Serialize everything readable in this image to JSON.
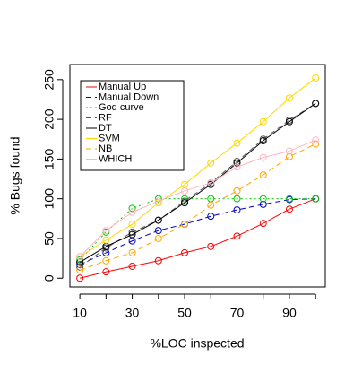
{
  "chart_data": {
    "type": "line",
    "xlabel": "%LOC inspected",
    "ylabel": "% Bugs found",
    "x": [
      10,
      20,
      30,
      40,
      50,
      60,
      70,
      80,
      90,
      100
    ],
    "xlim": [
      6.2,
      103.7
    ],
    "xticks": [
      10,
      30,
      50,
      70,
      90
    ],
    "ylim": [
      -11,
      269
    ],
    "yticks": [
      0,
      50,
      100,
      150,
      200,
      250
    ],
    "legend": "top-left",
    "series": [
      {
        "name": "Manual Up",
        "color": "#ff0000",
        "linestyle": "solid",
        "values": [
          0,
          8,
          15,
          22,
          32,
          40,
          53,
          69,
          87,
          100
        ]
      },
      {
        "name": "Manual Down",
        "color": "#0000cd",
        "linestyle": "dashed",
        "values": [
          17,
          32,
          47,
          60,
          68,
          78,
          86,
          93,
          99,
          100
        ]
      },
      {
        "name": "God curve",
        "color": "#00cc00",
        "linestyle": "dotted",
        "values": [
          23,
          58,
          88,
          100,
          100,
          100,
          100,
          100,
          100,
          100
        ]
      },
      {
        "name": "RF",
        "color": "#555555",
        "linestyle": "dashed",
        "values": [
          14,
          38,
          58,
          73,
          97,
          120,
          147,
          175,
          199,
          220
        ]
      },
      {
        "name": "DT",
        "color": "#000000",
        "linestyle": "solid",
        "values": [
          20,
          40,
          55,
          73,
          95,
          118,
          145,
          173,
          197,
          220
        ]
      },
      {
        "name": "SVM",
        "color": "#ffd700",
        "linestyle": "solid",
        "values": [
          27,
          48,
          68,
          95,
          118,
          145,
          170,
          197,
          227,
          252
        ]
      },
      {
        "name": "NB",
        "color": "#ffa500",
        "linestyle": "dashed",
        "values": [
          10,
          22,
          32,
          50,
          68,
          92,
          110,
          130,
          153,
          169
        ]
      },
      {
        "name": "WHICH",
        "color": "#ffb6c1",
        "linestyle": "solid",
        "values": [
          27,
          60,
          83,
          97,
          110,
          120,
          140,
          152,
          160,
          174
        ]
      }
    ]
  }
}
